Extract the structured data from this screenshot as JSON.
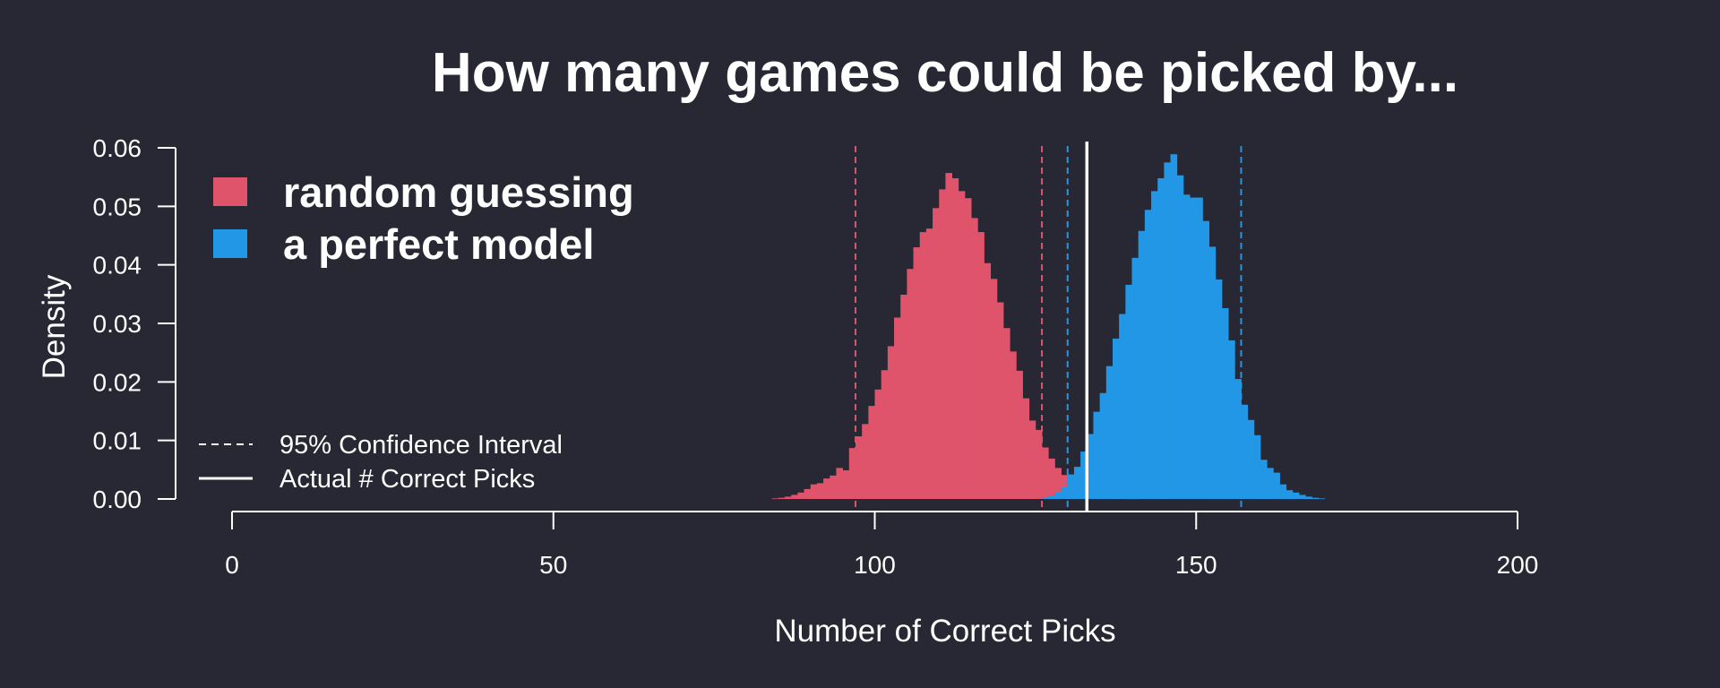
{
  "chart_data": {
    "type": "histogram",
    "title": "How many games could be picked by...",
    "xlabel": "Number of Correct Picks",
    "ylabel": "Density",
    "xlim": [
      0,
      200
    ],
    "ylim": [
      0,
      0.06
    ],
    "x_ticks": [
      0,
      50,
      100,
      150,
      200
    ],
    "y_ticks": [
      0.0,
      0.01,
      0.02,
      0.03,
      0.04,
      0.05,
      0.06
    ],
    "x_tick_labels": [
      "0",
      "50",
      "100",
      "150",
      "200"
    ],
    "y_tick_labels": [
      "0.00",
      "0.01",
      "0.02",
      "0.03",
      "0.04",
      "0.05",
      "0.06"
    ],
    "grid": false,
    "bin_width": 1,
    "series": [
      {
        "name": "random guessing",
        "color": "#DF536B",
        "bin_starts": [
          84,
          85,
          86,
          87,
          88,
          89,
          90,
          91,
          92,
          93,
          94,
          95,
          96,
          97,
          98,
          99,
          100,
          101,
          102,
          103,
          104,
          105,
          106,
          107,
          108,
          109,
          110,
          111,
          112,
          113,
          114,
          115,
          116,
          117,
          118,
          119,
          120,
          121,
          122,
          123,
          124,
          125,
          126,
          127,
          128,
          129,
          130,
          131,
          132,
          133,
          134,
          135,
          136,
          137,
          138,
          139,
          140
        ],
        "densities": [
          0.0001,
          0.0002,
          0.0004,
          0.0007,
          0.0011,
          0.0017,
          0.0025,
          0.0027,
          0.0035,
          0.004,
          0.0053,
          0.0049,
          0.0087,
          0.0107,
          0.0128,
          0.0159,
          0.0187,
          0.022,
          0.0261,
          0.031,
          0.0349,
          0.0393,
          0.043,
          0.0456,
          0.0462,
          0.0497,
          0.0529,
          0.0557,
          0.0548,
          0.0526,
          0.0514,
          0.048,
          0.0456,
          0.0403,
          0.0376,
          0.0336,
          0.0292,
          0.0252,
          0.0219,
          0.0172,
          0.0134,
          0.0118,
          0.0088,
          0.0069,
          0.0053,
          0.0041,
          0.0032,
          0.0025,
          0.0018,
          0.0013,
          0.0009,
          0.0006,
          0.0004,
          0.0003,
          0.0002,
          0.0001,
          0.0001
        ]
      },
      {
        "name": "a perfect model",
        "color": "#2297E6",
        "bin_starts": [
          126,
          127,
          128,
          129,
          130,
          131,
          132,
          133,
          134,
          135,
          136,
          137,
          138,
          139,
          140,
          141,
          142,
          143,
          144,
          145,
          146,
          147,
          148,
          149,
          150,
          151,
          152,
          153,
          154,
          155,
          156,
          157,
          158,
          159,
          160,
          161,
          162,
          163,
          164,
          165,
          166,
          167,
          168,
          169
        ],
        "densities": [
          0.0002,
          0.0005,
          0.0011,
          0.002,
          0.0042,
          0.0055,
          0.0081,
          0.0111,
          0.0149,
          0.0181,
          0.0227,
          0.0274,
          0.0316,
          0.0366,
          0.0412,
          0.0458,
          0.0494,
          0.0526,
          0.0548,
          0.0575,
          0.0589,
          0.0553,
          0.052,
          0.0515,
          0.0515,
          0.0475,
          0.0431,
          0.0375,
          0.0326,
          0.0271,
          0.0205,
          0.0161,
          0.0135,
          0.0109,
          0.0067,
          0.0053,
          0.0045,
          0.0025,
          0.0015,
          0.0011,
          0.0007,
          0.0004,
          0.0002,
          0.0001
        ]
      }
    ],
    "reference_lines": [
      {
        "label": "95% Confidence Interval",
        "style": "dashed",
        "series": "random guessing",
        "x": [
          97,
          126
        ],
        "color": "#DF536B"
      },
      {
        "label": "95% Confidence Interval",
        "style": "dashed",
        "series": "a perfect model",
        "x": [
          130,
          157
        ],
        "color": "#2297E6"
      },
      {
        "label": "Actual # Correct Picks",
        "style": "solid",
        "x": 133,
        "color": "#FFFFFF"
      }
    ],
    "legend": {
      "placement": "top-left",
      "entries": [
        {
          "label": "random guessing",
          "color": "#DF536B"
        },
        {
          "label": "a perfect model",
          "color": "#2297E6"
        }
      ],
      "line_entries": [
        {
          "label": "95% Confidence Interval",
          "style": "dashed"
        },
        {
          "label": "Actual # Correct Picks",
          "style": "solid"
        }
      ]
    },
    "colors": {
      "background": "#272833",
      "foreground": "#FFFFFF"
    }
  }
}
